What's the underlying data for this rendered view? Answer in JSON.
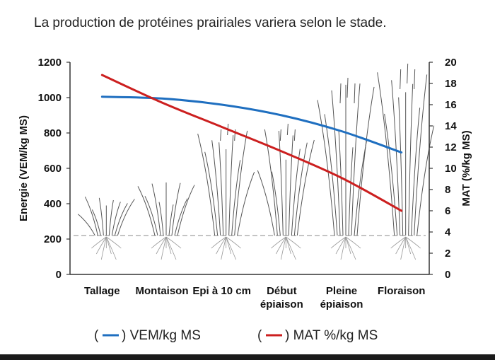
{
  "chart_data": {
    "type": "line",
    "title": "La production de protéines prairiales variera selon le stade.",
    "categories": [
      "Tallage",
      "Montaison",
      "Epi à 10 cm",
      "Début épiaison",
      "Pleine épiaison",
      "Floraison"
    ],
    "category_lines": [
      [
        "Tallage"
      ],
      [
        "Montaison"
      ],
      [
        "Epi à 10 cm"
      ],
      [
        "Début",
        "épiaison"
      ],
      [
        "Pleine",
        "épiaison"
      ],
      [
        "Floraison"
      ]
    ],
    "y_left": {
      "label": "Energie (VEM/kg MS)",
      "range": [
        0,
        1200
      ],
      "ticks": [
        0,
        200,
        400,
        600,
        800,
        1000,
        1200
      ]
    },
    "y_right": {
      "label": "MAT (%/kg MS)",
      "range": [
        0,
        20
      ],
      "ticks": [
        0,
        2,
        4,
        6,
        8,
        10,
        12,
        14,
        16,
        18,
        20
      ]
    },
    "series": [
      {
        "name": "VEM/kg MS",
        "axis": "left",
        "color": "#1f6fc0",
        "values": [
          1005,
          995,
          960,
          900,
          810,
          690
        ]
      },
      {
        "name": "MAT %/kg MS",
        "axis": "right",
        "color": "#cc1f1f",
        "values": [
          18.8,
          16.2,
          13.9,
          11.6,
          9.1,
          6.0
        ]
      }
    ],
    "legend": [
      {
        "label": ") VEM/kg MS",
        "color": "#1f6fc0"
      },
      {
        "label": ") MAT %/kg MS",
        "color": "#cc1f1f"
      }
    ],
    "legend_position": "bottom",
    "grid": false
  }
}
